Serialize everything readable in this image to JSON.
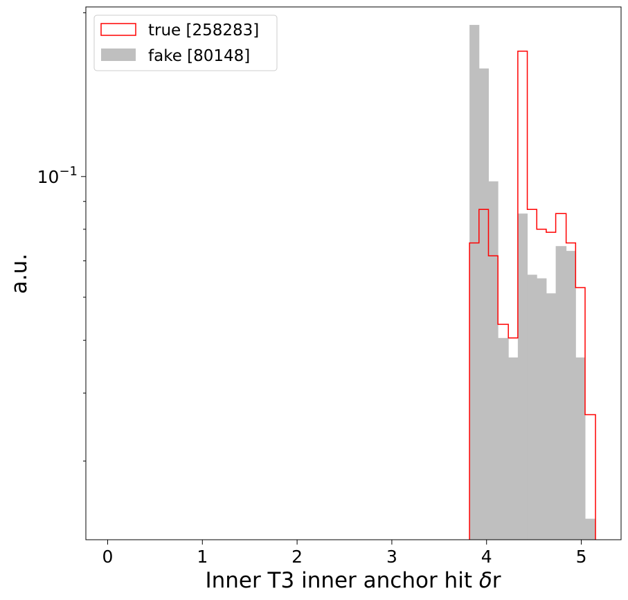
{
  "chart_data": {
    "type": "histogram",
    "title": "",
    "xlabel": "Inner T3 inner anchor hit δr",
    "ylabel": "a.u.",
    "xlim": [
      -0.23,
      5.42
    ],
    "ylim": [
      0.0215,
      0.205
    ],
    "yscale": "log",
    "x_ticks": [
      0,
      1,
      2,
      3,
      4,
      5
    ],
    "x_tick_labels": [
      "0",
      "1",
      "2",
      "3",
      "4",
      "5"
    ],
    "y_major_ticks": [
      {
        "value": 0.1,
        "base": "10",
        "exponent": "−1"
      }
    ],
    "y_minor_ticks": [
      0.02,
      0.03,
      0.04,
      0.05,
      0.06,
      0.07,
      0.08,
      0.09,
      0.2
    ],
    "grid": false,
    "legend_position": "upper left",
    "bin_edges": [
      3.82,
      3.92,
      4.02,
      4.12,
      4.23,
      4.33,
      4.43,
      4.53,
      4.63,
      4.73,
      4.84,
      4.94,
      5.04,
      5.15
    ],
    "series": [
      {
        "name": "true [258283]",
        "style": "step",
        "color": "#ff0000",
        "values": [
          0.0755,
          0.087,
          0.0715,
          0.0535,
          0.0505,
          0.17,
          0.087,
          0.08,
          0.079,
          0.0855,
          0.0755,
          0.0625,
          0.0365
        ]
      },
      {
        "name": "fake [80148]",
        "style": "filled",
        "color": "#bfbfbf",
        "values": [
          0.19,
          0.158,
          0.098,
          0.0505,
          0.0465,
          0.0855,
          0.066,
          0.065,
          0.061,
          0.0745,
          0.073,
          0.0465,
          0.0235
        ]
      }
    ]
  }
}
